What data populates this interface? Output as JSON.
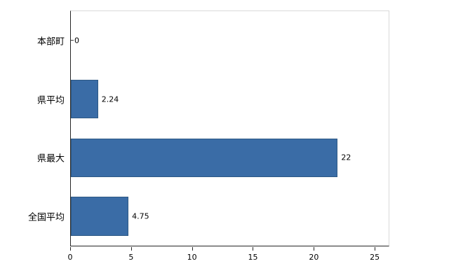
{
  "chart_data": {
    "type": "bar",
    "orientation": "horizontal",
    "title": "",
    "xlabel": "",
    "ylabel": "",
    "categories": [
      "本部町",
      "県平均",
      "県最大",
      "全国平均"
    ],
    "values": [
      0,
      2.24,
      22,
      4.75
    ],
    "value_labels": [
      "0",
      "2.24",
      "22",
      "4.75"
    ],
    "x_ticks": [
      0,
      5,
      10,
      15,
      20,
      25
    ],
    "xlim": [
      0,
      26.2
    ],
    "grid": "off",
    "legend": "none",
    "bar_color": "#3a6ca6",
    "bar_border_color": "#2e5984",
    "axis_color": "#262626",
    "plot_border_color": "#d9d9d9"
  }
}
